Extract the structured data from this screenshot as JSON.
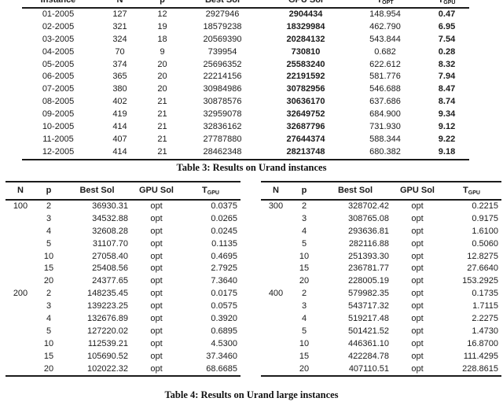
{
  "table3": {
    "caption": "Table 3: Results on Urand instances",
    "headers": [
      {
        "label": "Instance"
      },
      {
        "label": "N"
      },
      {
        "label": "p"
      },
      {
        "label": "Best Sol"
      },
      {
        "label": "GPU Sol"
      },
      {
        "label": "T",
        "sub": "OPT"
      },
      {
        "label": "T",
        "sub": "GPU"
      }
    ],
    "rows": [
      [
        "01-2005",
        "127",
        "12",
        "2927946",
        "2904434",
        "148.954",
        "0.47"
      ],
      [
        "02-2005",
        "321",
        "19",
        "18579238",
        "18329984",
        "462.790",
        "6.95"
      ],
      [
        "03-2005",
        "324",
        "18",
        "20569390",
        "20284132",
        "543.844",
        "7.54"
      ],
      [
        "04-2005",
        "70",
        "9",
        "739954",
        "730810",
        "0.682",
        "0.28"
      ],
      [
        "05-2005",
        "374",
        "20",
        "25696352",
        "25583240",
        "622.612",
        "8.32"
      ],
      [
        "06-2005",
        "365",
        "20",
        "22214156",
        "22191592",
        "581.776",
        "7.94"
      ],
      [
        "07-2005",
        "380",
        "20",
        "30984986",
        "30782956",
        "546.688",
        "8.47"
      ],
      [
        "08-2005",
        "402",
        "21",
        "30878576",
        "30636170",
        "637.686",
        "8.74"
      ],
      [
        "09-2005",
        "419",
        "21",
        "32959078",
        "32649752",
        "684.900",
        "9.34"
      ],
      [
        "10-2005",
        "414",
        "21",
        "32836162",
        "32687796",
        "731.930",
        "9.12"
      ],
      [
        "11-2005",
        "407",
        "21",
        "27787880",
        "27644374",
        "588.344",
        "9.22"
      ],
      [
        "12-2005",
        "414",
        "21",
        "28462348",
        "28213748",
        "680.382",
        "9.18"
      ]
    ]
  },
  "table4": {
    "caption": "Table 4: Results on Urand large instances",
    "headers": [
      {
        "label": "N"
      },
      {
        "label": "p"
      },
      {
        "label": "Best Sol"
      },
      {
        "label": "GPU Sol"
      },
      {
        "label": "T",
        "sub": "GPU"
      }
    ],
    "left_rows": [
      [
        "100",
        "2",
        "36930.31",
        "opt",
        "0.0375"
      ],
      [
        "",
        "3",
        "34532.88",
        "opt",
        "0.0265"
      ],
      [
        "",
        "4",
        "32608.28",
        "opt",
        "0.0245"
      ],
      [
        "",
        "5",
        "31107.70",
        "opt",
        "0.1135"
      ],
      [
        "",
        "10",
        "27058.40",
        "opt",
        "0.4695"
      ],
      [
        "",
        "15",
        "25408.56",
        "opt",
        "2.7925"
      ],
      [
        "",
        "20",
        "24377.65",
        "opt",
        "7.3640"
      ],
      [
        "200",
        "2",
        "148235.45",
        "opt",
        "0.0175"
      ],
      [
        "",
        "3",
        "139223.25",
        "opt",
        "0.0575"
      ],
      [
        "",
        "4",
        "132676.89",
        "opt",
        "0.3920"
      ],
      [
        "",
        "5",
        "127220.02",
        "opt",
        "0.6895"
      ],
      [
        "",
        "10",
        "112539.21",
        "opt",
        "4.5300"
      ],
      [
        "",
        "15",
        "105690.52",
        "opt",
        "37.3460"
      ],
      [
        "",
        "20",
        "102022.32",
        "opt",
        "68.6685"
      ]
    ],
    "right_rows": [
      [
        "300",
        "2",
        "328702.42",
        "opt",
        "0.2215"
      ],
      [
        "",
        "3",
        "308765.08",
        "opt",
        "0.9175"
      ],
      [
        "",
        "4",
        "293636.81",
        "opt",
        "1.6100"
      ],
      [
        "",
        "5",
        "282116.88",
        "opt",
        "0.5060"
      ],
      [
        "",
        "10",
        "251393.30",
        "opt",
        "12.8275"
      ],
      [
        "",
        "15",
        "236781.77",
        "opt",
        "27.6640"
      ],
      [
        "",
        "20",
        "228005.19",
        "opt",
        "153.2925"
      ],
      [
        "400",
        "2",
        "579982.35",
        "opt",
        "0.1735"
      ],
      [
        "",
        "3",
        "543717.32",
        "opt",
        "1.7115"
      ],
      [
        "",
        "4",
        "519217.48",
        "opt",
        "2.2275"
      ],
      [
        "",
        "5",
        "501421.52",
        "opt",
        "1.4730"
      ],
      [
        "",
        "10",
        "446361.10",
        "opt",
        "16.8700"
      ],
      [
        "",
        "15",
        "422284.78",
        "opt",
        "111.4295"
      ],
      [
        "",
        "20",
        "407110.51",
        "opt",
        "228.8615"
      ]
    ]
  }
}
